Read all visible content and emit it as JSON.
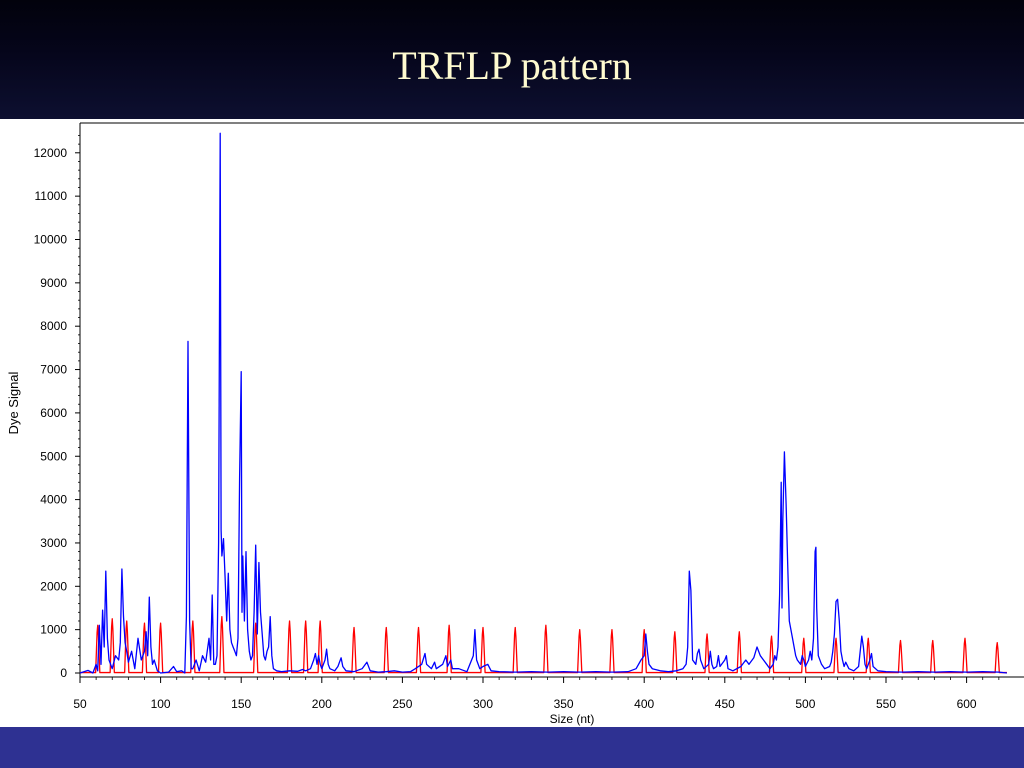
{
  "slide": {
    "title": "TRFLP pattern",
    "colors": {
      "background": "#0d0f30",
      "title_text": "#fffbd0",
      "footer_band": "#2e3192"
    }
  },
  "chart_data": {
    "type": "line",
    "title": "",
    "xlabel": "Size (nt)",
    "ylabel": "Dye Signal",
    "xlim": [
      50,
      625
    ],
    "ylim": [
      -100,
      12600
    ],
    "x_ticks": [
      50,
      100,
      150,
      200,
      250,
      300,
      350,
      400,
      450,
      500,
      550,
      600
    ],
    "y_ticks": [
      0,
      1000,
      2000,
      3000,
      4000,
      5000,
      6000,
      7000,
      8000,
      9000,
      10000,
      11000,
      12000
    ],
    "grid": false,
    "legend": "none",
    "series": [
      {
        "color": "#0000ff",
        "points": [
          [
            50,
            0
          ],
          [
            55,
            60
          ],
          [
            58,
            0
          ],
          [
            60,
            200
          ],
          [
            61,
            50
          ],
          [
            62,
            1100
          ],
          [
            63,
            200
          ],
          [
            64,
            1450
          ],
          [
            65,
            600
          ],
          [
            66,
            2350
          ],
          [
            67,
            800
          ],
          [
            68,
            300
          ],
          [
            70,
            100
          ],
          [
            72,
            400
          ],
          [
            74,
            300
          ],
          [
            75,
            700
          ],
          [
            76,
            2400
          ],
          [
            77,
            1300
          ],
          [
            78,
            700
          ],
          [
            79,
            500
          ],
          [
            80,
            250
          ],
          [
            82,
            500
          ],
          [
            84,
            100
          ],
          [
            86,
            800
          ],
          [
            88,
            300
          ],
          [
            90,
            500
          ],
          [
            91,
            950
          ],
          [
            92,
            400
          ],
          [
            93,
            1750
          ],
          [
            94,
            600
          ],
          [
            95,
            200
          ],
          [
            96,
            300
          ],
          [
            98,
            50
          ],
          [
            100,
            0
          ],
          [
            105,
            20
          ],
          [
            108,
            150
          ],
          [
            110,
            30
          ],
          [
            113,
            50
          ],
          [
            115,
            0
          ],
          [
            116,
            1300
          ],
          [
            117,
            7650
          ],
          [
            118,
            1200
          ],
          [
            119,
            100
          ],
          [
            120,
            100
          ],
          [
            122,
            300
          ],
          [
            124,
            50
          ],
          [
            126,
            400
          ],
          [
            128,
            250
          ],
          [
            130,
            800
          ],
          [
            131,
            300
          ],
          [
            132,
            1800
          ],
          [
            133,
            200
          ],
          [
            134,
            200
          ],
          [
            135,
            400
          ],
          [
            136,
            3000
          ],
          [
            137,
            12450
          ],
          [
            137.5,
            3300
          ],
          [
            138,
            2700
          ],
          [
            139,
            3100
          ],
          [
            140,
            2200
          ],
          [
            141,
            1200
          ],
          [
            142,
            2300
          ],
          [
            143,
            1000
          ],
          [
            144,
            700
          ],
          [
            145,
            600
          ],
          [
            146,
            500
          ],
          [
            147,
            400
          ],
          [
            148,
            800
          ],
          [
            149,
            4500
          ],
          [
            150,
            6950
          ],
          [
            150.5,
            1400
          ],
          [
            151,
            2700
          ],
          [
            152,
            1200
          ],
          [
            153,
            2800
          ],
          [
            154,
            1000
          ],
          [
            155,
            500
          ],
          [
            156,
            300
          ],
          [
            157,
            400
          ],
          [
            158,
            1400
          ],
          [
            159,
            2950
          ],
          [
            160,
            900
          ],
          [
            161,
            2550
          ],
          [
            162,
            1400
          ],
          [
            163,
            900
          ],
          [
            164,
            400
          ],
          [
            165,
            300
          ],
          [
            166,
            500
          ],
          [
            167,
            600
          ],
          [
            168,
            1300
          ],
          [
            169,
            400
          ],
          [
            170,
            100
          ],
          [
            172,
            50
          ],
          [
            175,
            30
          ],
          [
            180,
            50
          ],
          [
            185,
            40
          ],
          [
            188,
            80
          ],
          [
            190,
            50
          ],
          [
            193,
            100
          ],
          [
            195,
            300
          ],
          [
            196,
            450
          ],
          [
            197,
            200
          ],
          [
            198,
            400
          ],
          [
            199,
            200
          ],
          [
            200,
            100
          ],
          [
            202,
            300
          ],
          [
            203,
            550
          ],
          [
            204,
            200
          ],
          [
            205,
            100
          ],
          [
            208,
            50
          ],
          [
            210,
            150
          ],
          [
            212,
            350
          ],
          [
            213,
            150
          ],
          [
            215,
            50
          ],
          [
            220,
            30
          ],
          [
            225,
            100
          ],
          [
            228,
            250
          ],
          [
            230,
            50
          ],
          [
            235,
            20
          ],
          [
            240,
            30
          ],
          [
            245,
            50
          ],
          [
            250,
            20
          ],
          [
            255,
            30
          ],
          [
            258,
            100
          ],
          [
            262,
            200
          ],
          [
            264,
            450
          ],
          [
            265,
            200
          ],
          [
            268,
            100
          ],
          [
            270,
            250
          ],
          [
            271,
            100
          ],
          [
            275,
            200
          ],
          [
            277,
            400
          ],
          [
            278,
            150
          ],
          [
            280,
            300
          ],
          [
            281,
            100
          ],
          [
            285,
            100
          ],
          [
            290,
            30
          ],
          [
            294,
            400
          ],
          [
            295,
            1000
          ],
          [
            296,
            300
          ],
          [
            298,
            100
          ],
          [
            300,
            150
          ],
          [
            303,
            200
          ],
          [
            305,
            50
          ],
          [
            310,
            30
          ],
          [
            320,
            20
          ],
          [
            330,
            30
          ],
          [
            340,
            20
          ],
          [
            350,
            30
          ],
          [
            360,
            20
          ],
          [
            370,
            30
          ],
          [
            380,
            20
          ],
          [
            390,
            30
          ],
          [
            395,
            100
          ],
          [
            398,
            300
          ],
          [
            400,
            400
          ],
          [
            401,
            900
          ],
          [
            402,
            500
          ],
          [
            403,
            200
          ],
          [
            405,
            100
          ],
          [
            410,
            50
          ],
          [
            415,
            30
          ],
          [
            420,
            50
          ],
          [
            424,
            100
          ],
          [
            426,
            200
          ],
          [
            427,
            600
          ],
          [
            428,
            2350
          ],
          [
            429,
            1900
          ],
          [
            430,
            300
          ],
          [
            432,
            200
          ],
          [
            433,
            450
          ],
          [
            434,
            550
          ],
          [
            435,
            300
          ],
          [
            437,
            100
          ],
          [
            440,
            200
          ],
          [
            441,
            500
          ],
          [
            442,
            200
          ],
          [
            443,
            100
          ],
          [
            445,
            150
          ],
          [
            446,
            400
          ],
          [
            447,
            150
          ],
          [
            450,
            300
          ],
          [
            451,
            400
          ],
          [
            452,
            100
          ],
          [
            455,
            50
          ],
          [
            460,
            150
          ],
          [
            463,
            300
          ],
          [
            465,
            200
          ],
          [
            468,
            350
          ],
          [
            470,
            600
          ],
          [
            472,
            400
          ],
          [
            474,
            300
          ],
          [
            476,
            200
          ],
          [
            478,
            100
          ],
          [
            480,
            200
          ],
          [
            481,
            400
          ],
          [
            482,
            300
          ],
          [
            483,
            600
          ],
          [
            484,
            1800
          ],
          [
            485,
            4400
          ],
          [
            485.5,
            1500
          ],
          [
            486,
            3500
          ],
          [
            487,
            5100
          ],
          [
            488,
            3900
          ],
          [
            489,
            2500
          ],
          [
            490,
            1200
          ],
          [
            491,
            1000
          ],
          [
            492,
            800
          ],
          [
            493,
            600
          ],
          [
            494,
            400
          ],
          [
            495,
            300
          ],
          [
            497,
            200
          ],
          [
            498,
            400
          ],
          [
            499,
            300
          ],
          [
            500,
            150
          ],
          [
            502,
            300
          ],
          [
            503,
            500
          ],
          [
            504,
            300
          ],
          [
            505,
            800
          ],
          [
            506,
            2800
          ],
          [
            506.5,
            2900
          ],
          [
            507,
            1500
          ],
          [
            508,
            400
          ],
          [
            510,
            200
          ],
          [
            512,
            100
          ],
          [
            515,
            150
          ],
          [
            516,
            250
          ],
          [
            517,
            500
          ],
          [
            518,
            900
          ],
          [
            519,
            1650
          ],
          [
            520,
            1700
          ],
          [
            521,
            1200
          ],
          [
            522,
            500
          ],
          [
            523,
            300
          ],
          [
            524,
            150
          ],
          [
            525,
            250
          ],
          [
            527,
            100
          ],
          [
            530,
            50
          ],
          [
            533,
            150
          ],
          [
            535,
            850
          ],
          [
            536,
            600
          ],
          [
            537,
            200
          ],
          [
            538,
            100
          ],
          [
            540,
            300
          ],
          [
            541,
            450
          ],
          [
            542,
            150
          ],
          [
            545,
            50
          ],
          [
            550,
            30
          ],
          [
            560,
            20
          ],
          [
            570,
            30
          ],
          [
            580,
            20
          ],
          [
            590,
            30
          ],
          [
            600,
            20
          ],
          [
            610,
            30
          ],
          [
            620,
            20
          ],
          [
            625,
            0
          ]
        ]
      },
      {
        "color": "#ff0000",
        "peaks": [
          [
            61,
            1100
          ],
          [
            70,
            1250
          ],
          [
            79,
            1200
          ],
          [
            90,
            1150
          ],
          [
            100,
            1150
          ],
          [
            120,
            1200
          ],
          [
            138,
            1300
          ],
          [
            159,
            1150
          ],
          [
            180,
            1200
          ],
          [
            190,
            1200
          ],
          [
            199,
            1200
          ],
          [
            220,
            1050
          ],
          [
            240,
            1050
          ],
          [
            260,
            1050
          ],
          [
            279,
            1100
          ],
          [
            300,
            1050
          ],
          [
            320,
            1050
          ],
          [
            339,
            1100
          ],
          [
            360,
            1000
          ],
          [
            380,
            1000
          ],
          [
            400,
            1000
          ],
          [
            419,
            950
          ],
          [
            439,
            900
          ],
          [
            459,
            950
          ],
          [
            479,
            850
          ],
          [
            499,
            800
          ],
          [
            519,
            800
          ],
          [
            539,
            800
          ],
          [
            559,
            750
          ],
          [
            579,
            750
          ],
          [
            599,
            800
          ],
          [
            619,
            700
          ]
        ]
      }
    ]
  }
}
